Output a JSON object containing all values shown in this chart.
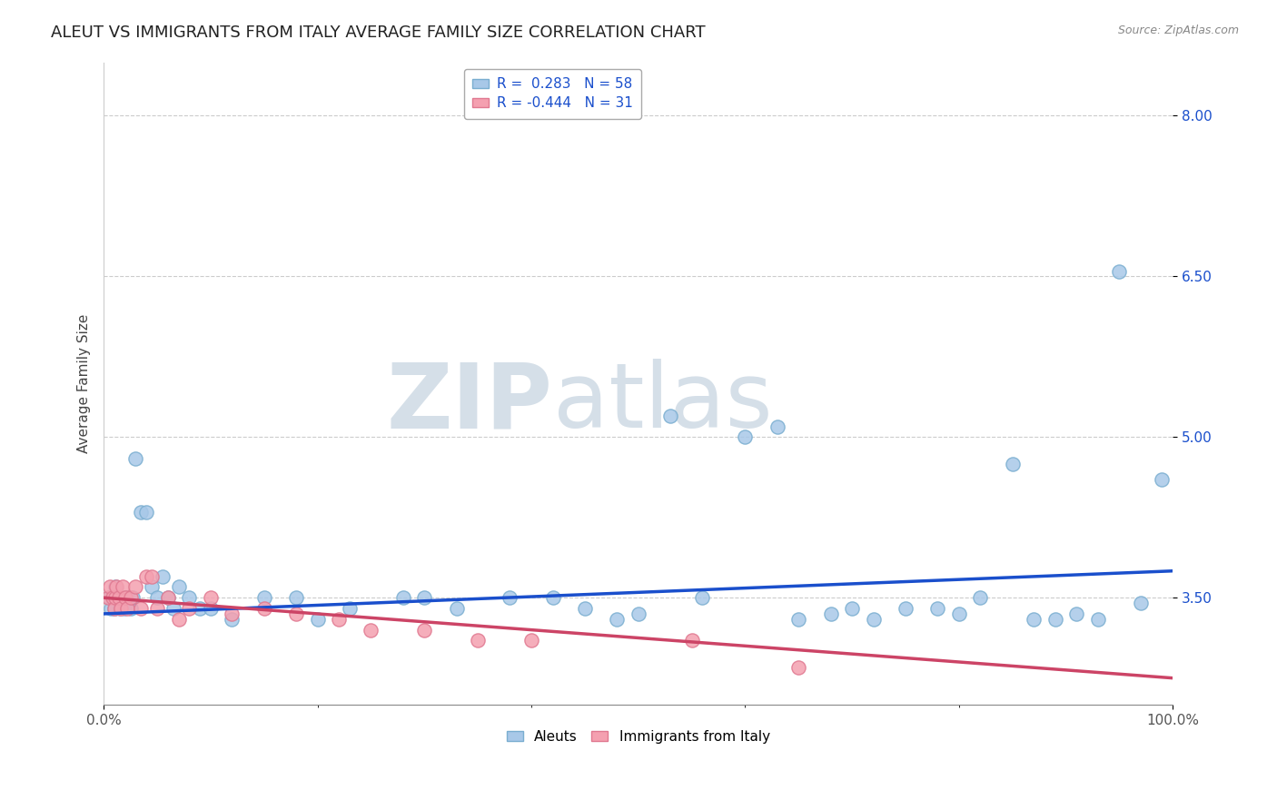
{
  "title": "ALEUT VS IMMIGRANTS FROM ITALY AVERAGE FAMILY SIZE CORRELATION CHART",
  "source": "Source: ZipAtlas.com",
  "ylabel": "Average Family Size",
  "xlim": [
    0,
    100
  ],
  "ylim": [
    2.5,
    8.5
  ],
  "yticks": [
    3.5,
    5.0,
    6.5,
    8.0
  ],
  "xticks": [
    0,
    100
  ],
  "xticklabels": [
    "0.0%",
    "100.0%"
  ],
  "grid_color": "#cccccc",
  "background_color": "#ffffff",
  "aleuts_color": "#a8c8e8",
  "aleuts_edge_color": "#7aaed0",
  "italy_color": "#f4a0b0",
  "italy_edge_color": "#e07890",
  "trend_blue": "#1a4fcc",
  "trend_pink": "#cc4466",
  "legend_r_blue": "0.283",
  "legend_n_blue": "58",
  "legend_r_pink": "-0.444",
  "legend_n_pink": "31",
  "watermark_color": "#d5dfe8",
  "label_aleuts": "Aleuts",
  "label_italy": "Immigrants from Italy",
  "ytick_color": "#1a4fcc",
  "title_fontsize": 13,
  "axis_fontsize": 11,
  "tick_fontsize": 11,
  "legend_fontsize": 11,
  "aleuts_x": [
    0.5,
    0.7,
    0.9,
    1.0,
    1.1,
    1.3,
    1.5,
    1.7,
    1.9,
    2.0,
    2.2,
    2.5,
    2.7,
    3.0,
    3.5,
    4.0,
    4.5,
    5.0,
    5.5,
    6.0,
    6.5,
    7.0,
    8.0,
    9.0,
    10.0,
    12.0,
    15.0,
    18.0,
    20.0,
    23.0,
    28.0,
    30.0,
    33.0,
    38.0,
    42.0,
    45.0,
    48.0,
    50.0,
    53.0,
    56.0,
    60.0,
    63.0,
    65.0,
    68.0,
    70.0,
    72.0,
    75.0,
    78.0,
    80.0,
    82.0,
    85.0,
    87.0,
    89.0,
    91.0,
    93.0,
    95.0,
    97.0,
    99.0
  ],
  "aleuts_y": [
    3.5,
    3.4,
    3.5,
    3.4,
    3.6,
    3.5,
    3.4,
    3.5,
    3.4,
    3.5,
    3.5,
    3.4,
    3.5,
    4.8,
    4.3,
    4.3,
    3.6,
    3.5,
    3.7,
    3.5,
    3.4,
    3.6,
    3.5,
    3.4,
    3.4,
    3.3,
    3.5,
    3.5,
    3.3,
    3.4,
    3.5,
    3.5,
    3.4,
    3.5,
    3.5,
    3.4,
    3.3,
    3.35,
    5.2,
    3.5,
    5.0,
    5.1,
    3.3,
    3.35,
    3.4,
    3.3,
    3.4,
    3.4,
    3.35,
    3.5,
    4.75,
    3.3,
    3.3,
    3.35,
    3.3,
    6.55,
    3.45,
    4.6
  ],
  "italy_x": [
    0.4,
    0.6,
    0.8,
    1.0,
    1.1,
    1.2,
    1.4,
    1.6,
    1.8,
    2.0,
    2.2,
    2.5,
    3.0,
    3.5,
    4.0,
    4.5,
    5.0,
    6.0,
    7.0,
    8.0,
    10.0,
    12.0,
    15.0,
    18.0,
    22.0,
    25.0,
    30.0,
    35.0,
    40.0,
    55.0,
    65.0
  ],
  "italy_y": [
    3.5,
    3.6,
    3.5,
    3.4,
    3.5,
    3.6,
    3.5,
    3.4,
    3.6,
    3.5,
    3.4,
    3.5,
    3.6,
    3.4,
    3.7,
    3.7,
    3.4,
    3.5,
    3.3,
    3.4,
    3.5,
    3.35,
    3.4,
    3.35,
    3.3,
    3.2,
    3.2,
    3.1,
    3.1,
    3.1,
    2.85
  ],
  "trend_blue_x0": 0,
  "trend_blue_y0": 3.35,
  "trend_blue_x1": 100,
  "trend_blue_y1": 3.75,
  "trend_pink_x0": 0,
  "trend_pink_y0": 3.5,
  "trend_pink_x1": 100,
  "trend_pink_y1": 2.75
}
